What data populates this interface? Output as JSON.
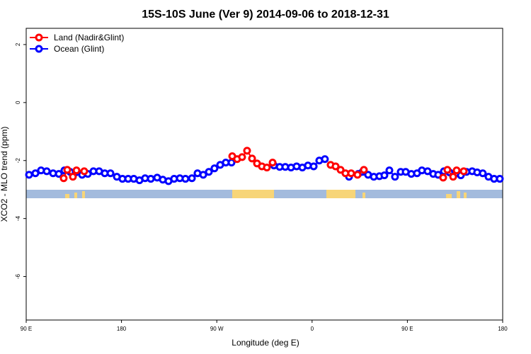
{
  "chart_data": {
    "type": "line",
    "title": "15S-10S June (Ver 9)   2014-09-06 to 2018-12-31",
    "xlabel": "Longitude (deg E)",
    "ylabel": "XCO2 - MLO trend (ppm)",
    "xlim": [
      90,
      540
    ],
    "ylim": [
      -7.5,
      2.56
    ],
    "xticks": [
      {
        "value": 90,
        "label": "90 E"
      },
      180,
      {
        "value": 270,
        "label": "90 W"
      },
      {
        "value": 360,
        "label": "0"
      },
      {
        "value": 450,
        "label": "90 E"
      },
      {
        "value": 540,
        "label": "180"
      }
    ],
    "yticks": [
      -6,
      -4,
      -2,
      0,
      2
    ],
    "legend": "top-left",
    "series": [
      {
        "name": "Land (Nadir&Glint)",
        "color": "#ff0000",
        "x": [
          125.4,
          128.8,
          134.1,
          137.5,
          144.8,
          200,
          284.6,
          289.2,
          293.9,
          298.6,
          303.3,
          308.0,
          312.6,
          317.3,
          322.7,
          350,
          377.5,
          382.2,
          386.9,
          391.5,
          396.9,
          402.9,
          408.9,
          450,
          483.8,
          487.8,
          493.2,
          496.5,
          503.2
        ],
        "values": [
          -2.61,
          -2.32,
          -2.56,
          -2.34,
          -2.37,
          null,
          -1.85,
          -1.95,
          -1.88,
          -1.66,
          -1.93,
          -2.1,
          -2.2,
          -2.24,
          -2.07,
          null,
          -2.15,
          -2.2,
          -2.32,
          -2.44,
          -2.44,
          -2.49,
          -2.32,
          null,
          -2.59,
          -2.32,
          -2.56,
          -2.34,
          -2.37
        ]
      },
      {
        "name": "Ocean (Glint)",
        "color": "#0000ff",
        "x": [
          92.7,
          98.7,
          104.0,
          109.4,
          115.4,
          120.8,
          126.1,
          131.5,
          136.8,
          142.8,
          148.2,
          153.5,
          158.9,
          164.2,
          169.6,
          175.6,
          180.9,
          186.3,
          191.6,
          197.0,
          202.3,
          207.7,
          213.7,
          219.0,
          224.4,
          229.7,
          235.1,
          240.4,
          246.5,
          251.8,
          257.2,
          262.5,
          267.8,
          273.2,
          278.5,
          283.9,
          300,
          324.0,
          329.4,
          334.7,
          340.1,
          345.4,
          350.8,
          356.1,
          361.5,
          366.8,
          372.1,
          383,
          394.9,
          403.6,
          407.6,
          412.9,
          418.3,
          423.6,
          428.3,
          433.0,
          438.3,
          443.7,
          448.4,
          453.7,
          459.1,
          463.7,
          469.1,
          474.4,
          479.1,
          484.5,
          489.8,
          495.2,
          500.5,
          505.9,
          511.2,
          515.9,
          521.2,
          526.6,
          531.9,
          537.3
        ],
        "values": [
          -2.49,
          -2.44,
          -2.34,
          -2.37,
          -2.44,
          -2.46,
          -2.34,
          -2.39,
          -2.41,
          -2.49,
          -2.46,
          -2.37,
          -2.37,
          -2.44,
          -2.44,
          -2.56,
          -2.63,
          -2.63,
          -2.63,
          -2.68,
          -2.61,
          -2.63,
          -2.59,
          -2.66,
          -2.71,
          -2.63,
          -2.61,
          -2.63,
          -2.61,
          -2.44,
          -2.49,
          -2.39,
          -2.27,
          -2.15,
          -2.07,
          -2.07,
          null,
          -2.17,
          -2.22,
          -2.22,
          -2.24,
          -2.2,
          -2.24,
          -2.17,
          -2.2,
          -2.0,
          -1.95,
          null,
          -2.56,
          -2.46,
          -2.39,
          -2.49,
          -2.56,
          -2.54,
          -2.51,
          -2.34,
          -2.56,
          -2.39,
          -2.39,
          -2.46,
          -2.44,
          -2.34,
          -2.37,
          -2.46,
          -2.49,
          -2.37,
          -2.41,
          -2.46,
          -2.51,
          -2.39,
          -2.37,
          -2.41,
          -2.44,
          -2.56,
          -2.63,
          -2.63
        ]
      }
    ]
  }
}
